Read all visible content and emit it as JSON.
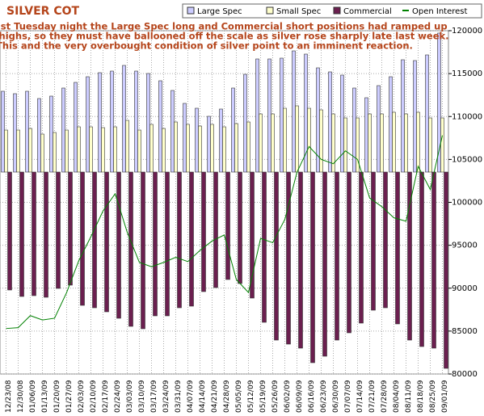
{
  "chart_data": {
    "type": "bar",
    "title": "SILVER COT",
    "annotation": [
      "As of last Tuesday night the Large Spec long and Commercial short positions had ramped up",
      "to new highs, so they must have ballooned off the scale as silver rose sharply late last week.",
      "This and the very overbought condition of silver point to an imminent reaction."
    ],
    "categories": [
      "12/23/08",
      "12/30/08",
      "01/06/09",
      "01/13/09",
      "01/20/09",
      "01/27/09",
      "02/03/09",
      "02/10/09",
      "02/17/09",
      "02/24/09",
      "03/03/09",
      "03/10/09",
      "03/17/09",
      "03/24/09",
      "03/31/09",
      "04/07/09",
      "04/14/09",
      "04/21/09",
      "04/28/09",
      "05/05/09",
      "05/12/09",
      "05/19/09",
      "05/26/09",
      "06/02/09",
      "06/09/09",
      "06/16/09",
      "06/23/09",
      "06/30/09",
      "07/07/09",
      "07/14/09",
      "07/21/09",
      "07/28/09",
      "08/04/09",
      "08/11/09",
      "08/18/09",
      "08/25/09",
      "09/01/09"
    ],
    "series": [
      {
        "name": "Large Spec",
        "color": "#ccccff",
        "axis": "y2",
        "values": [
          24000,
          23280,
          24000,
          21840,
          22560,
          24960,
          26640,
          28320,
          29520,
          30000,
          31680,
          30000,
          29280,
          27120,
          24240,
          20400,
          18960,
          16560,
          18720,
          24960,
          29040,
          33600,
          33600,
          33840,
          36000,
          35040,
          30960,
          29760,
          28800,
          24960,
          22080,
          25680,
          28320,
          33360,
          33120,
          34800,
          41280
        ]
      },
      {
        "name": "Small Spec",
        "color": "#ffffcc",
        "axis": "y2",
        "values": [
          12480,
          12480,
          12960,
          11280,
          11760,
          12480,
          13440,
          13440,
          13200,
          13440,
          15360,
          12480,
          14160,
          12960,
          14880,
          14160,
          13680,
          14160,
          13440,
          14400,
          14880,
          17280,
          17280,
          18960,
          19680,
          18960,
          18480,
          17280,
          16080,
          16080,
          17280,
          17280,
          17760,
          17280,
          17760,
          16080,
          16080
        ]
      },
      {
        "name": "Commercial",
        "color": "#6b1f4f",
        "axis": "y2",
        "values": [
          -35040,
          -36960,
          -36720,
          -37200,
          -34560,
          -33600,
          -39600,
          -40320,
          -41520,
          -43440,
          -45840,
          -46560,
          -42720,
          -42720,
          -40320,
          -39840,
          -35520,
          -34320,
          -31920,
          -33120,
          -37440,
          -44640,
          -49920,
          -51120,
          -52320,
          -56640,
          -54720,
          -49920,
          -47760,
          -44880,
          -41040,
          -40320,
          -45120,
          -49920,
          -51840,
          -52320,
          -58320
        ]
      },
      {
        "name": "Open Interest",
        "color": "#008000",
        "type": "line",
        "values": [
          85300,
          85400,
          86800,
          86300,
          86500,
          89500,
          93200,
          96000,
          99000,
          101000,
          96500,
          93000,
          92500,
          93000,
          93600,
          93100,
          94400,
          95500,
          96200,
          91000,
          89500,
          95800,
          95300,
          98000,
          103500,
          106500,
          105000,
          104500,
          106000,
          105000,
          100500,
          99500,
          98200,
          97800,
          104200,
          101500,
          107800
        ]
      }
    ],
    "ylim": [
      80000,
      120000
    ],
    "yticks": [
      80000,
      85000,
      90000,
      95000,
      100000,
      105000,
      110000,
      115000,
      120000
    ],
    "y2lim": [
      -60000,
      42000
    ],
    "grid": true
  }
}
